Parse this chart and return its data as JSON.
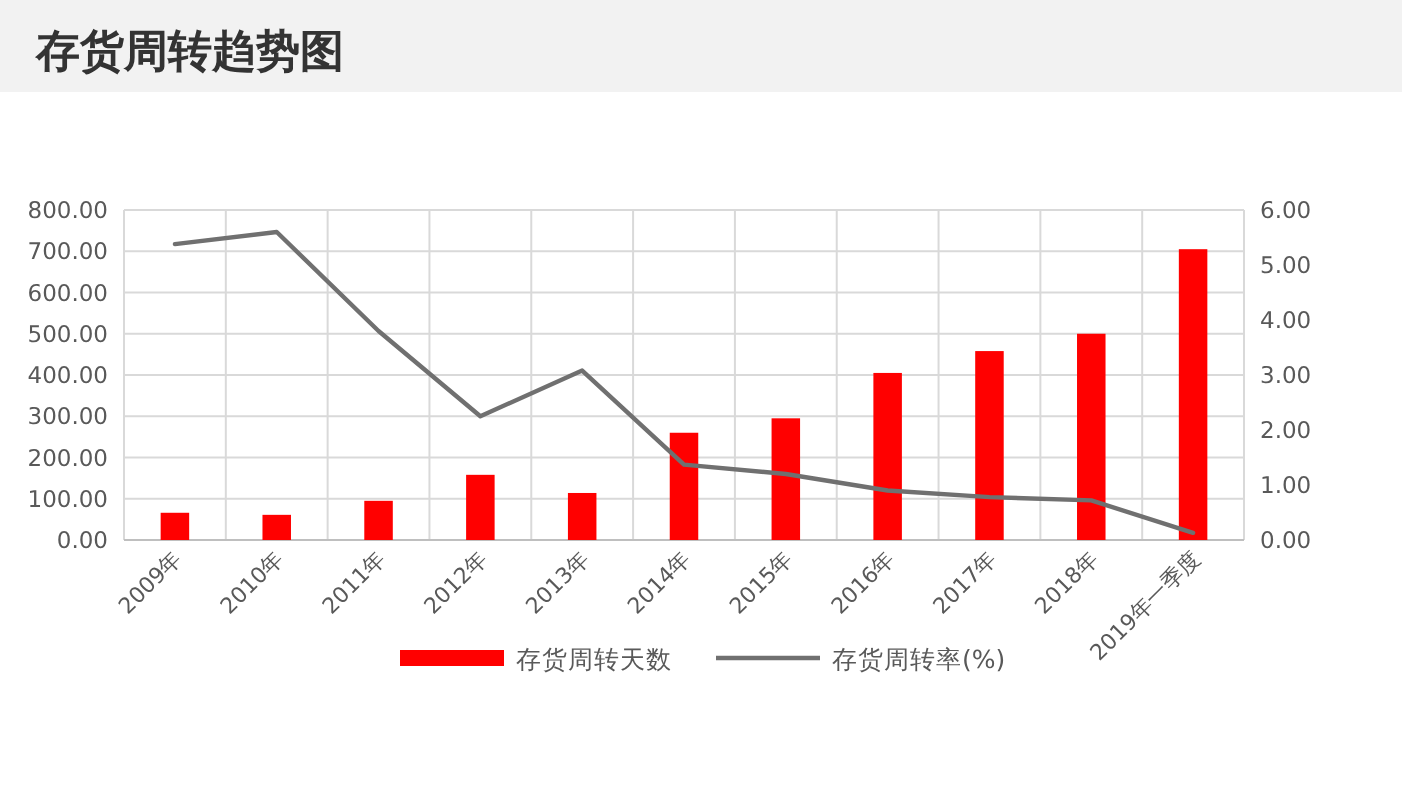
{
  "chart_data": {
    "type": "bar",
    "title": "存货周转趋势图",
    "categories": [
      "2009年",
      "2010年",
      "2011年",
      "2012年",
      "2013年",
      "2014年",
      "2015年",
      "2016年",
      "2017年",
      "2018年",
      "2019年一季度"
    ],
    "series": [
      {
        "name": "存货周转天数",
        "color": "#ff0000",
        "values": [
          66,
          61,
          95,
          158,
          114,
          260,
          295,
          405,
          458,
          500,
          705
        ]
      },
      {
        "name": "存货周转率(%)",
        "type": "line",
        "axis": "y2",
        "color": "#707070",
        "values": [
          5.38,
          5.6,
          3.8,
          2.25,
          3.08,
          1.37,
          1.2,
          0.9,
          0.78,
          0.72,
          0.13
        ]
      }
    ],
    "ylim": [
      0,
      800
    ],
    "yticks": [
      {
        "value": 0,
        "label": "0.00"
      },
      {
        "value": 100,
        "label": "100.00"
      },
      {
        "value": 200,
        "label": "200.00"
      },
      {
        "value": 300,
        "label": "300.00"
      },
      {
        "value": 400,
        "label": "400.00"
      },
      {
        "value": 500,
        "label": "500.00"
      },
      {
        "value": 600,
        "label": "600.00"
      },
      {
        "value": 700,
        "label": "700.00"
      },
      {
        "value": 800,
        "label": "800.00"
      }
    ],
    "y2lim": [
      0,
      6
    ],
    "y2ticks": [
      {
        "value": 0,
        "label": "0.00"
      },
      {
        "value": 1,
        "label": "1.00"
      },
      {
        "value": 2,
        "label": "2.00"
      },
      {
        "value": 3,
        "label": "3.00"
      },
      {
        "value": 4,
        "label": "4.00"
      },
      {
        "value": 5,
        "label": "5.00"
      },
      {
        "value": 6,
        "label": "6.00"
      }
    ],
    "grid": true,
    "legend": "bottom",
    "marker": "none",
    "line_style": "solid"
  }
}
